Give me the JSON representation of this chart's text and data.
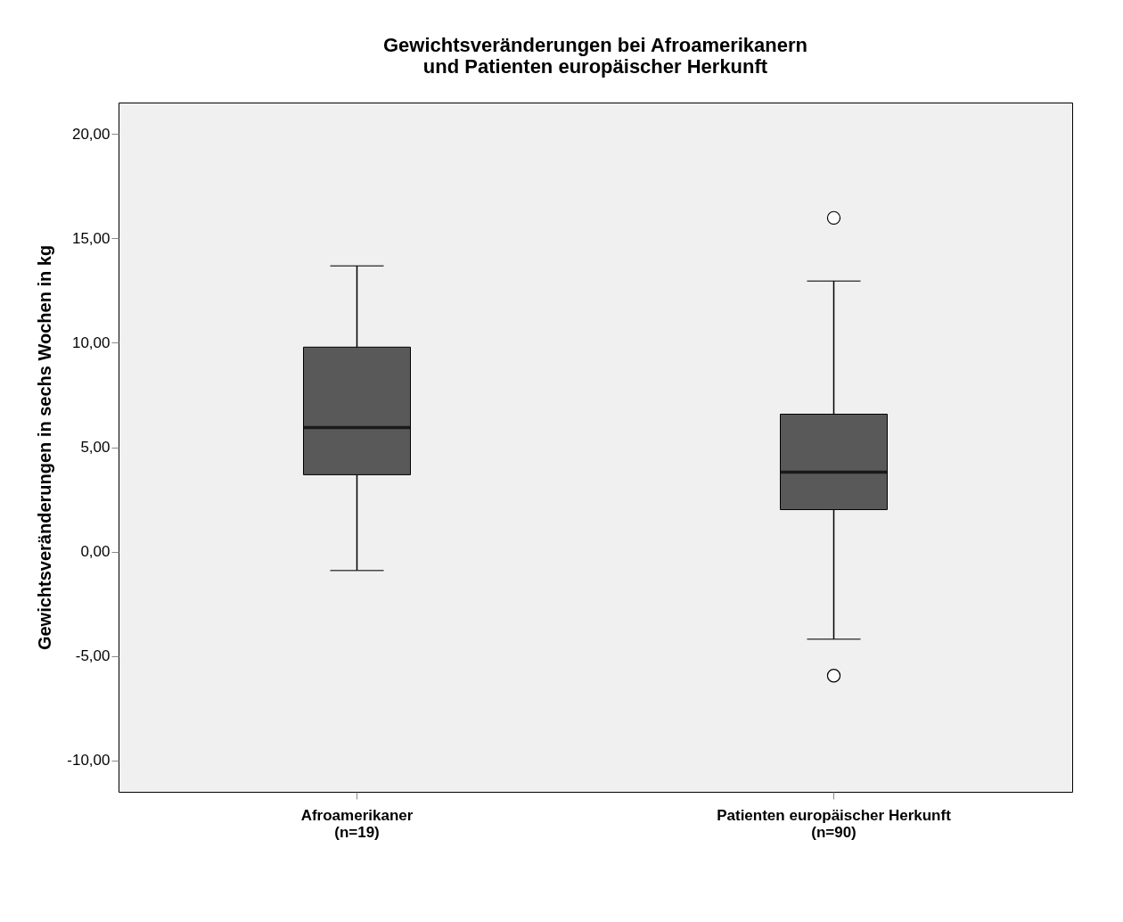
{
  "chart_data": {
    "type": "box",
    "title": "Gewichtsveränderungen bei Afroamerikanern\nund Patienten europäischer Herkunft",
    "ylabel": "Gewichtsveränderungen in sechs Wochen in kg",
    "categories": [
      "Afroamerikaner\n(n=19)",
      "Patienten europäischer Herkunft\n(n=90)"
    ],
    "boxes": [
      {
        "low": -0.9,
        "q1": 3.68,
        "median": 5.94,
        "q3": 9.79,
        "high": 13.68
      },
      {
        "low": -4.19,
        "q1": 2.01,
        "median": 3.8,
        "q3": 6.58,
        "high": 12.95,
        "outliers": [
          15.98,
          -5.94
        ]
      }
    ],
    "color": "#595959",
    "ylim": [
      -11.5,
      21.5
    ],
    "yticks": [
      {
        "value": -10,
        "label": "-10,00"
      },
      {
        "value": -5,
        "label": "-5,00"
      },
      {
        "value": 0,
        "label": "0,00"
      },
      {
        "value": 5,
        "label": "5,00"
      },
      {
        "value": 10,
        "label": "10,00"
      },
      {
        "value": 15,
        "label": "15,00"
      },
      {
        "value": 20,
        "label": "20,00"
      }
    ],
    "grid": false
  }
}
